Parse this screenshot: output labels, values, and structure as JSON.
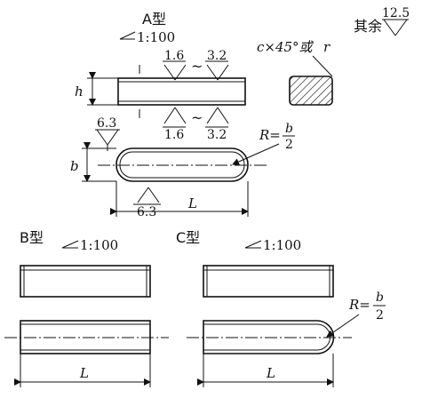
{
  "labels": {
    "type_a": "A型",
    "type_b": "B型",
    "type_c": "C型",
    "taper_a": "1:100",
    "taper_b": "1:100",
    "taper_c": "1:100",
    "rough_top_left": "1.6",
    "rough_top_right": "3.2",
    "rough_bottom_left": "1.6",
    "rough_bottom_right": "3.2",
    "rough_side": "6.3",
    "rough_bottom_plan": "6.3",
    "rough_rest": "12.5",
    "rest_text": "其余",
    "tilde": "~",
    "chamfer": "c×45°或",
    "chamfer_r": "r",
    "dim_h": "h",
    "dim_b": "b",
    "dim_L_a": "L",
    "dim_L_b": "L",
    "dim_L_c": "L",
    "radius_a_prefix": "R=",
    "radius_a_num": "b",
    "radius_a_den": "2",
    "radius_c_prefix": "R=",
    "radius_c_num": "b",
    "radius_c_den": "2"
  }
}
